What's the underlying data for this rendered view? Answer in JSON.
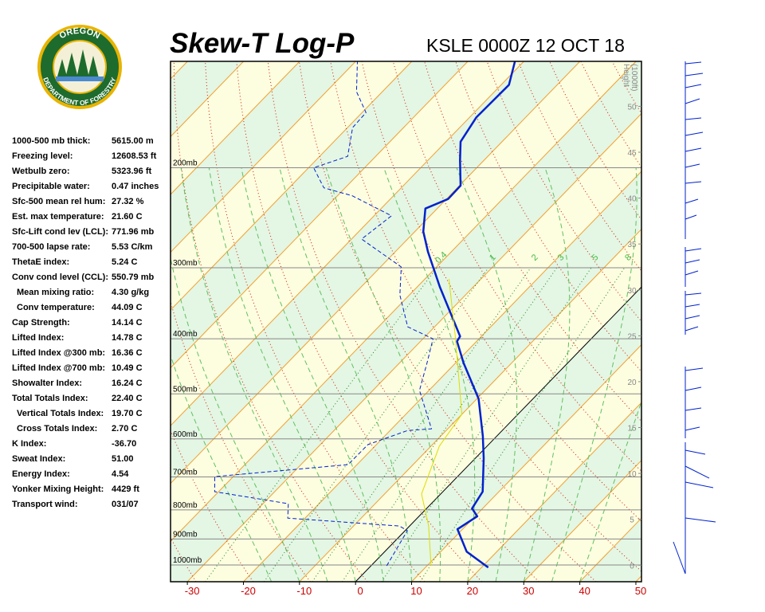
{
  "logo": {
    "top": "OREGON",
    "bottom": "DEPARTMENT OF FORESTRY"
  },
  "indices": [
    {
      "label": "1000-500 mb thick:",
      "value": "5615.00 m"
    },
    {
      "label": "Freezing level:",
      "value": "12608.53 ft"
    },
    {
      "label": "Wetbulb zero:",
      "value": "5323.96 ft"
    },
    {
      "label": "Precipitable water:",
      "value": "0.47 inches"
    },
    {
      "label": "Sfc-500 mean rel hum:",
      "value": "27.32 %"
    },
    {
      "label": "Est. max temperature:",
      "value": "21.60 C"
    },
    {
      "label": "Sfc-Lift cond lev (LCL):",
      "value": "771.96 mb"
    },
    {
      "label": "700-500 lapse rate:",
      "value": "5.53 C/km"
    },
    {
      "label": "ThetaE index:",
      "value": "5.24 C"
    },
    {
      "label": "Conv cond level (CCL):",
      "value": "550.79 mb"
    },
    {
      "label": "Mean mixing ratio:",
      "value": "4.30 g/kg"
    },
    {
      "label": "Conv temperature:",
      "value": "44.09 C"
    },
    {
      "label": "Cap Strength:",
      "value": "14.14 C"
    },
    {
      "label": "Lifted Index:",
      "value": "14.78 C"
    },
    {
      "label": "Lifted Index @300 mb:",
      "value": "16.36 C"
    },
    {
      "label": "Lifted Index @700 mb:",
      "value": "10.49 C"
    },
    {
      "label": "Showalter Index:",
      "value": "16.24 C"
    },
    {
      "label": "Total Totals Index:",
      "value": "22.40 C"
    },
    {
      "label": "Vertical Totals Index:",
      "value": "19.70 C"
    },
    {
      "label": "Cross Totals Index:",
      "value": "2.70 C"
    },
    {
      "label": "K Index:",
      "value": "-36.70"
    },
    {
      "label": "Sweat Index:",
      "value": "51.00"
    },
    {
      "label": "Energy Index:",
      "value": "4.54"
    },
    {
      "label": "Yonker Mixing Height:",
      "value": "4429 ft"
    },
    {
      "label": "Transport wind:",
      "value": "031/07"
    }
  ],
  "chart_data": {
    "type": "skewt",
    "title": "Skew-T Log-P",
    "subtitle": "KSLE 0000Z 12 OCT 18",
    "xlim": [
      -33,
      51
    ],
    "xticks": [
      -30,
      -20,
      -10,
      0,
      10,
      20,
      30,
      40,
      50
    ],
    "ylim": [
      1070,
      130
    ],
    "log_y": true,
    "yticks": [
      {
        "value": 1000,
        "label": "1000mb"
      },
      {
        "value": 900,
        "label": "900mb"
      },
      {
        "value": 800,
        "label": "800mb"
      },
      {
        "value": 700,
        "label": "700mb"
      },
      {
        "value": 600,
        "label": "600mb"
      },
      {
        "value": 500,
        "label": "500mb"
      },
      {
        "value": 400,
        "label": "400mb"
      },
      {
        "value": 300,
        "label": "300mb"
      },
      {
        "value": 200,
        "label": "200mb"
      }
    ],
    "y2label": [
      "Height",
      "(1000ft)"
    ],
    "y2lim": [
      -1.8,
      54.9
    ],
    "y2ticks": [
      0,
      5,
      10,
      15,
      20,
      25,
      30,
      35,
      40,
      45,
      50
    ],
    "mixing_ratios": [
      0.4,
      1,
      2,
      3,
      5,
      8
    ],
    "series": [
      {
        "color": "#0022cc",
        "style": "solid",
        "values": [
          21.2,
          14.6,
          9.1,
          10.4,
          8.1,
          7.1,
          1.5,
          -2.5,
          -9.7,
          -18.6,
          -23.5,
          -23.8,
          -36.0,
          -44.2,
          -48.5,
          -52.1,
          -49.7,
          -49.8,
          -54.3,
          -57.4,
          -58.8,
          -58.6,
          -61.6
        ],
        "pressure": [
          1010,
          947,
          865,
          821,
          795,
          743,
          649,
          593,
          510,
          441,
          404,
          396,
          324,
          281,
          259,
          236,
          227,
          215,
          194,
          180,
          163,
          143,
          130
        ]
      },
      {
        "color": "#0022cc",
        "style": "dashed",
        "values": [
          2.8,
          0.4,
          -1.8,
          -23.1,
          -25.5,
          -40.7,
          -43.3,
          -21.6,
          -21.5,
          -16.9,
          -12.9,
          -21.7,
          -25.1,
          -28.2,
          -34.8,
          -41.7,
          -46.3,
          -58.2,
          -56.9,
          -67.4,
          -73.8,
          -79.1,
          -75.0,
          -79.1,
          -79.3,
          -84.6,
          -89.7
        ],
        "pressure": [
          1003,
          870,
          854,
          827,
          780,
          743,
          699,
          666,
          614,
          580,
          576,
          493,
          441,
          400,
          381,
          335,
          299,
          267,
          243,
          224,
          217,
          200,
          191,
          170,
          160,
          147,
          130
        ]
      },
      {
        "color": "#dddd00",
        "style": "thin",
        "values": [
          10.7,
          3.4,
          -3.4,
          -8.5,
          -10.0,
          -24.9,
          -35.7
        ],
        "pressure": [
          1003,
          854,
          750,
          618,
          543,
          394,
          314
        ]
      }
    ]
  }
}
